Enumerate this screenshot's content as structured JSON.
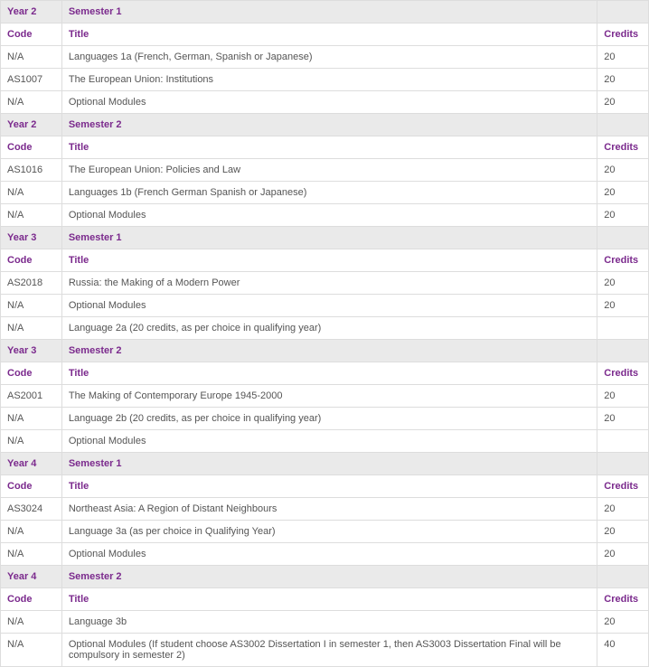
{
  "columns": {
    "code": "Code",
    "title": "Title",
    "credits": "Credits"
  },
  "blocks": [
    {
      "year": "Year 2",
      "semester": "Semester 1",
      "rows": [
        {
          "code": "N/A",
          "title": "Languages 1a (French, German, Spanish or Japanese)",
          "credits": "20"
        },
        {
          "code": "AS1007",
          "title": "The European Union: Institutions",
          "credits": "20"
        },
        {
          "code": "N/A",
          "title": "Optional Modules",
          "credits": "20"
        }
      ]
    },
    {
      "year": "Year 2",
      "semester": "Semester 2",
      "rows": [
        {
          "code": "AS1016",
          "title": "The European Union: Policies and Law",
          "credits": "20"
        },
        {
          "code": "N/A",
          "title": "Languages 1b (French German Spanish or Japanese)",
          "credits": "20"
        },
        {
          "code": "N/A",
          "title": "Optional Modules",
          "credits": "20"
        }
      ]
    },
    {
      "year": "Year 3",
      "semester": "Semester 1",
      "rows": [
        {
          "code": "AS2018",
          "title": "Russia: the Making of a Modern Power",
          "credits": "20"
        },
        {
          "code": "N/A",
          "title": "Optional Modules",
          "credits": "20"
        },
        {
          "code": "N/A",
          "title": "Language 2a (20 credits, as per choice in qualifying year)",
          "credits": ""
        }
      ]
    },
    {
      "year": "Year 3",
      "semester": "Semester 2",
      "rows": [
        {
          "code": "AS2001",
          "title": "The Making of Contemporary Europe 1945-2000",
          "credits": "20"
        },
        {
          "code": "N/A",
          "title": "Language 2b (20 credits, as per choice in qualifying year)",
          "credits": "20"
        },
        {
          "code": "N/A",
          "title": "Optional Modules",
          "credits": ""
        }
      ]
    },
    {
      "year": "Year 4",
      "semester": "Semester 1",
      "rows": [
        {
          "code": "AS3024",
          "title": "Northeast Asia: A Region of Distant Neighbours",
          "credits": "20"
        },
        {
          "code": "N/A",
          "title": "Language 3a (as per choice in Qualifying Year)",
          "credits": "20"
        },
        {
          "code": "N/A",
          "title": "Optional Modules",
          "credits": "20"
        }
      ]
    },
    {
      "year": "Year 4",
      "semester": "Semester 2",
      "rows": [
        {
          "code": "N/A",
          "title": "Language 3b",
          "credits": "20"
        },
        {
          "code": "N/A",
          "title": "Optional Modules (If student choose AS3002 Dissertation I in semester 1, then AS3003 Dissertation Final will be compulsory in semester 2)",
          "credits": "40"
        }
      ]
    }
  ]
}
